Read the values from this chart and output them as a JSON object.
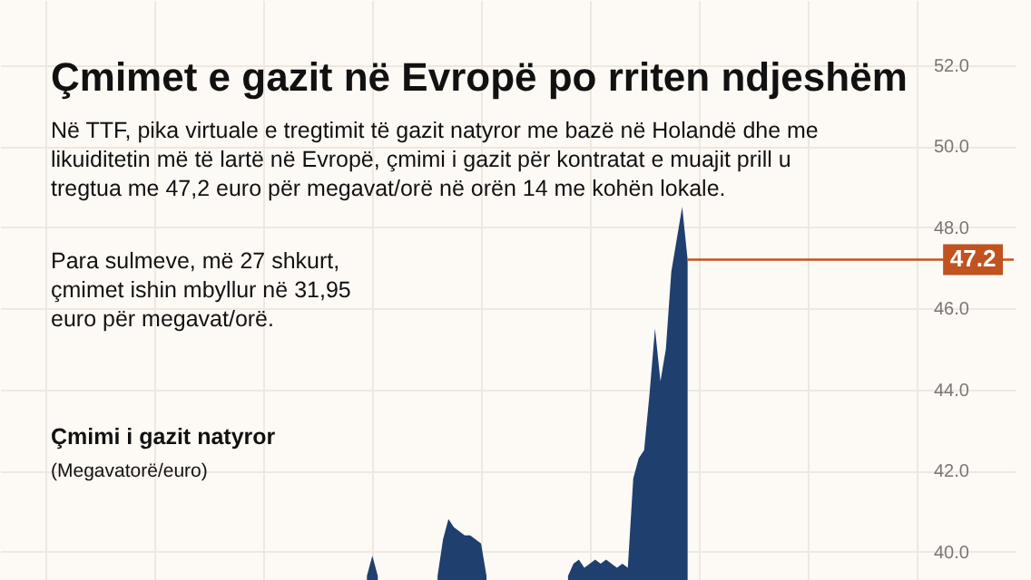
{
  "chart_data": {
    "type": "area",
    "title": "Çmimet e gazit në Evropë po rriten ndjeshëm",
    "subtitle": "Në TTF, pika virtuale e tregtimit të gazit natyror me bazë në Holandë dhe me likuiditetin më të lartë në Evropë, çmimi i gazit për kontratat e muajit prill u tregtua me 47,2 euro për megavat/orë në orën 14 me kohën lokale.",
    "annotations": [
      "Para sulmeve, më 27 shkurt, çmimet ishin mbyllur në 31,95 euro për megavat/orë.",
      "(Megavatorë/euro)"
    ],
    "ylabel": "Çmimi i gazit natyror",
    "categories": [
      null,
      null,
      null,
      null,
      null,
      null,
      null,
      null,
      null,
      null,
      null,
      null,
      null,
      null,
      null,
      null,
      null,
      null,
      null,
      null,
      null,
      null,
      null,
      null,
      null,
      null,
      null,
      null,
      null,
      null,
      null,
      null,
      null,
      null,
      null,
      null,
      null,
      null,
      null,
      null,
      null,
      null,
      null,
      null,
      null,
      null,
      null,
      null,
      null,
      null,
      null,
      null,
      null,
      null,
      null,
      null,
      null,
      null,
      null,
      null,
      null,
      null,
      null,
      null,
      null,
      null,
      null,
      null,
      null,
      null,
      null,
      null,
      null,
      null,
      null,
      null,
      null,
      null,
      null,
      null,
      null,
      null,
      null,
      null,
      null,
      null,
      null,
      null,
      null,
      null,
      null,
      null,
      null,
      null,
      null,
      null,
      null,
      null,
      null,
      null,
      null,
      null,
      null,
      null,
      null,
      null,
      null,
      null,
      null,
      null,
      null,
      null,
      null,
      null,
      null,
      null,
      null,
      null,
      null,
      null,
      null,
      null,
      null,
      null,
      null,
      null,
      null,
      null,
      null,
      null,
      null,
      null,
      null,
      null,
      null,
      null,
      null,
      null,
      null,
      null,
      null,
      null,
      null,
      null,
      null,
      null,
      null,
      null,
      null,
      null,
      null,
      null,
      null,
      null,
      null,
      null,
      null,
      null,
      null,
      null,
      null,
      null,
      null,
      null,
      null,
      null,
      null,
      null,
      null,
      null,
      null,
      null,
      null,
      null,
      null,
      null,
      null,
      null,
      null,
      null,
      null,
      null,
      null,
      null,
      null,
      null,
      null
    ],
    "series": [
      {
        "color": "#1f3f6e",
        "values": [
          null,
          null,
          null,
          null,
          null,
          null,
          null,
          null,
          null,
          null,
          null,
          null,
          null,
          null,
          null,
          null,
          null,
          null,
          null,
          null,
          null,
          null,
          null,
          null,
          null,
          null,
          null,
          null,
          null,
          null,
          null,
          null,
          null,
          null,
          null,
          null,
          null,
          null,
          null,
          null,
          null,
          null,
          null,
          null,
          null,
          null,
          null,
          null,
          null,
          null,
          null,
          null,
          null,
          null,
          null,
          null,
          null,
          null,
          null,
          null,
          null,
          null,
          null,
          null,
          null,
          null,
          null,
          39.4,
          39.9,
          39.4,
          null,
          null,
          null,
          null,
          null,
          null,
          null,
          null,
          null,
          null,
          39.4,
          40.3,
          40.8,
          40.6,
          40.5,
          40.4,
          40.4,
          40.3,
          40.2,
          39.4,
          null,
          null,
          null,
          null,
          null,
          null,
          null,
          null,
          null,
          null,
          null,
          null,
          null,
          null,
          39.4,
          39.7,
          39.8,
          39.6,
          39.7,
          39.8,
          39.7,
          39.8,
          39.7,
          39.6,
          39.7,
          39.6,
          41.8,
          42.3,
          42.5,
          43.9,
          45.5,
          44.2,
          45.0,
          46.9,
          47.7,
          48.5,
          47.2,
          null,
          null,
          null,
          null,
          null,
          null,
          null,
          null,
          null,
          null,
          null,
          null,
          null,
          null,
          null,
          null,
          null,
          null,
          null,
          null,
          null,
          null,
          null,
          null,
          null,
          null,
          null,
          null,
          null,
          null,
          null,
          null,
          null,
          null,
          null,
          null,
          null,
          null,
          null,
          null,
          null,
          null,
          null,
          null,
          null,
          null,
          null,
          null,
          null,
          null,
          null,
          null,
          null,
          null,
          null,
          null,
          null,
          null,
          null,
          null
        ]
      }
    ],
    "ylim": [
      39.3,
      53.6
    ],
    "yticks": [
      {
        "value": 40,
        "label": "40.0"
      },
      {
        "value": 42,
        "label": "42.0"
      },
      {
        "value": 44,
        "label": "44.0"
      },
      {
        "value": 46,
        "label": "46.0"
      },
      {
        "value": 48,
        "label": "48.0"
      },
      {
        "value": 50,
        "label": "50.0"
      },
      {
        "value": 52,
        "label": "52.0"
      }
    ],
    "ref_lines": [
      {
        "axis": "y",
        "value": 47.2,
        "label": "47.2",
        "color": "#c0531f"
      }
    ],
    "grid": true
  }
}
